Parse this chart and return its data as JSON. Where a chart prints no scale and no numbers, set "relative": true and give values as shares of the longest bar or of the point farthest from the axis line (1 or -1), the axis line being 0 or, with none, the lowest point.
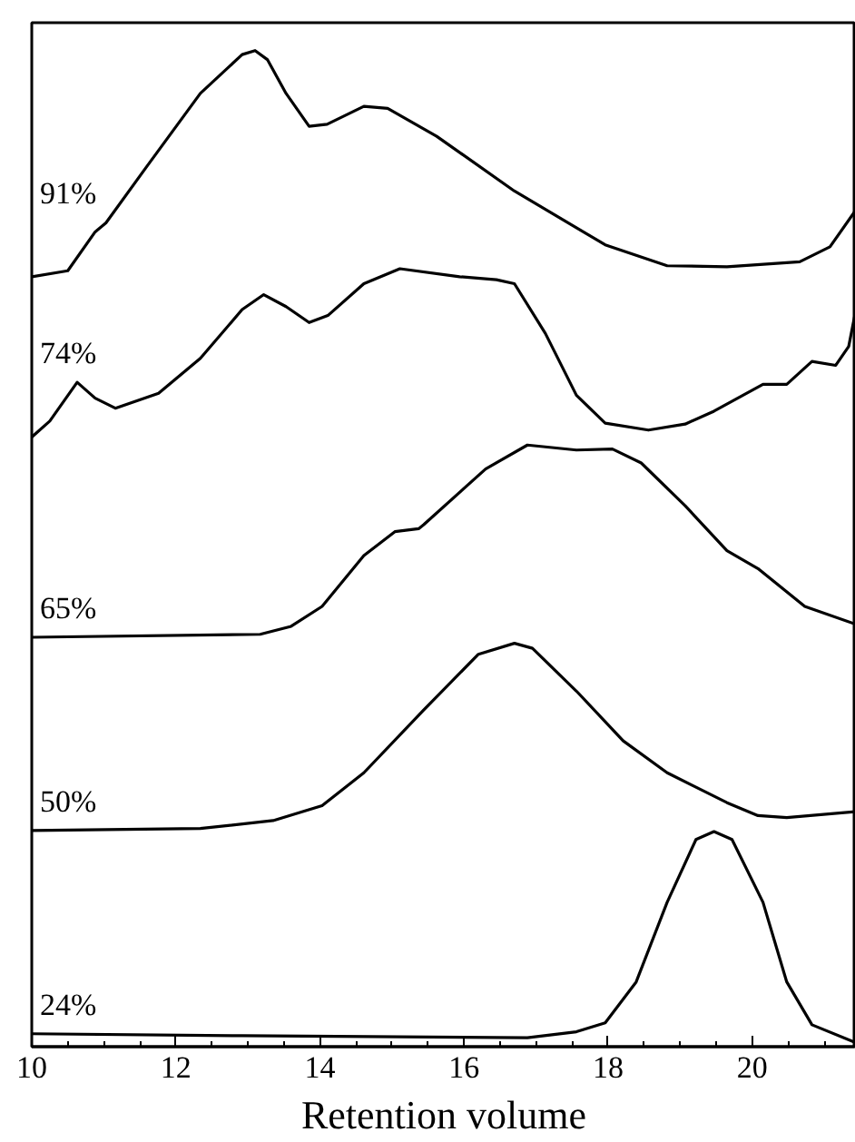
{
  "chart_data": {
    "type": "line",
    "xlabel": "Retention volume",
    "relative": true,
    "xlim": [
      10,
      21.44
    ],
    "xticks": [
      10,
      12,
      14,
      16,
      18,
      20
    ],
    "grid": false,
    "series": [
      {
        "name": "91%",
        "color": "#000000",
        "x": [
          10.0,
          10.5,
          10.88,
          11.03,
          11.59,
          12.34,
          12.92,
          13.1,
          13.27,
          13.53,
          13.85,
          14.1,
          14.61,
          14.94,
          15.62,
          16.7,
          17.96,
          18.82,
          19.65,
          20.66,
          21.08,
          21.44
        ],
        "values": [
          0.773,
          0.779,
          0.818,
          0.827,
          0.883,
          0.957,
          0.996,
          1.0,
          0.991,
          0.957,
          0.924,
          0.926,
          0.944,
          0.942,
          0.914,
          0.859,
          0.805,
          0.784,
          0.783,
          0.788,
          0.803,
          0.84
        ]
      },
      {
        "name": "74%",
        "color": "#000000",
        "x": [
          10.0,
          10.25,
          10.63,
          10.88,
          11.16,
          11.76,
          12.34,
          12.92,
          13.22,
          13.53,
          13.85,
          14.11,
          14.61,
          15.11,
          15.94,
          16.45,
          16.7,
          17.13,
          17.56,
          17.96,
          18.56,
          19.07,
          19.47,
          20.15,
          20.48,
          20.83,
          21.16,
          21.34,
          21.44
        ],
        "values": [
          0.612,
          0.628,
          0.667,
          0.651,
          0.641,
          0.656,
          0.691,
          0.74,
          0.755,
          0.743,
          0.727,
          0.734,
          0.766,
          0.781,
          0.773,
          0.77,
          0.766,
          0.716,
          0.654,
          0.626,
          0.619,
          0.625,
          0.638,
          0.665,
          0.665,
          0.688,
          0.684,
          0.703,
          0.74
        ]
      },
      {
        "name": "65%",
        "color": "#000000",
        "x": [
          10.0,
          13.17,
          13.6,
          14.03,
          14.61,
          15.04,
          15.37,
          15.44,
          16.3,
          16.88,
          17.56,
          18.06,
          18.46,
          19.07,
          19.65,
          20.08,
          20.73,
          21.44
        ],
        "values": [
          0.411,
          0.414,
          0.422,
          0.442,
          0.493,
          0.517,
          0.52,
          0.524,
          0.58,
          0.604,
          0.599,
          0.6,
          0.586,
          0.543,
          0.498,
          0.48,
          0.442,
          0.424
        ]
      },
      {
        "name": "50%",
        "color": "#000000",
        "x": [
          10.0,
          12.34,
          13.35,
          14.03,
          14.61,
          15.44,
          16.2,
          16.7,
          16.95,
          17.56,
          18.21,
          18.82,
          19.65,
          20.08,
          20.48,
          21.44
        ],
        "values": [
          0.217,
          0.219,
          0.227,
          0.242,
          0.275,
          0.338,
          0.394,
          0.405,
          0.4,
          0.357,
          0.307,
          0.275,
          0.245,
          0.232,
          0.23,
          0.236
        ]
      },
      {
        "name": "24%",
        "color": "#000000",
        "x": [
          10.0,
          12.92,
          16.88,
          17.56,
          17.96,
          18.39,
          18.82,
          19.22,
          19.47,
          19.72,
          20.15,
          20.48,
          20.83,
          21.44
        ],
        "values": [
          0.013,
          0.011,
          0.009,
          0.015,
          0.024,
          0.065,
          0.145,
          0.208,
          0.216,
          0.208,
          0.145,
          0.065,
          0.022,
          0.004
        ]
      }
    ]
  }
}
